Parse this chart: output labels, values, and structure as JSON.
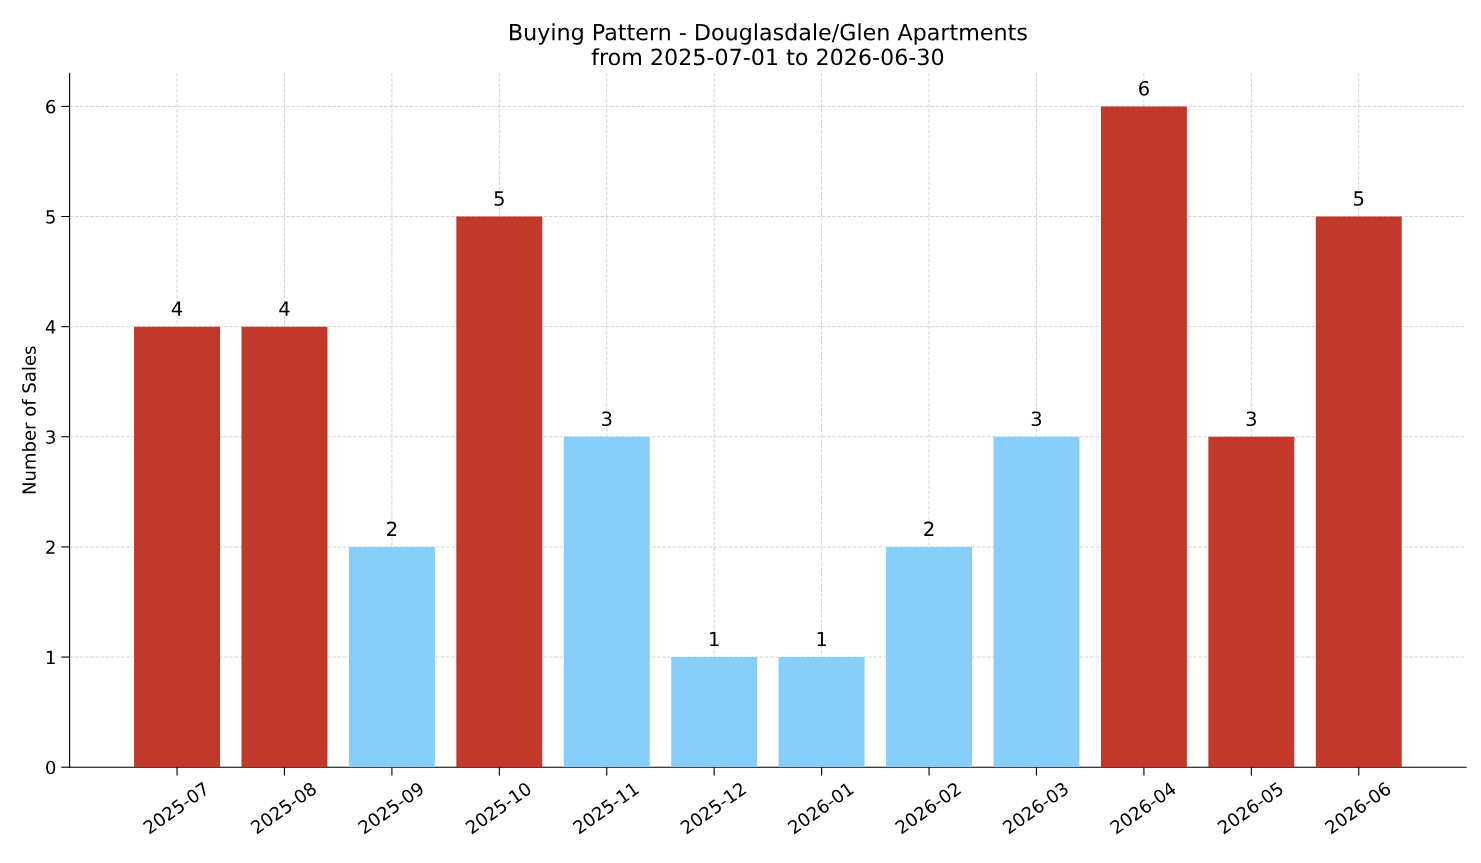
{
  "chart_data": {
    "type": "bar",
    "title": "Buying Pattern - Douglasdale/Glen Apartments\nfrom 2025-07-01 to 2026-06-30",
    "ylabel": "Number of Sales",
    "categories": [
      "2025-07",
      "2025-08",
      "2025-09",
      "2025-10",
      "2025-11",
      "2025-12",
      "2026-01",
      "2026-02",
      "2026-03",
      "2026-04",
      "2026-05",
      "2026-06"
    ],
    "values": [
      4,
      4,
      2,
      5,
      3,
      1,
      1,
      2,
      3,
      6,
      3,
      5
    ],
    "colors": [
      "#c0392b",
      "#c0392b",
      "#87cefa",
      "#c0392b",
      "#87cefa",
      "#87cefa",
      "#87cefa",
      "#87cefa",
      "#87cefa",
      "#c0392b",
      "#c0392b",
      "#c0392b"
    ],
    "ylim": [
      0,
      6.3
    ],
    "yticks": [
      0,
      1,
      2,
      3,
      4,
      5,
      6
    ],
    "grid": true,
    "data_labels": true
  }
}
